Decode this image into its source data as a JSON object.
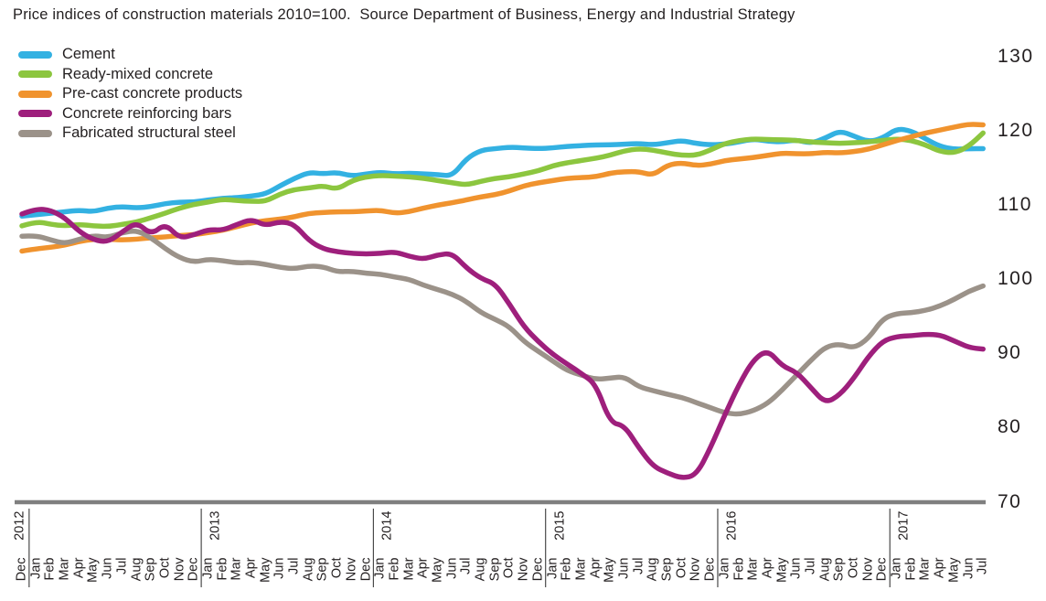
{
  "title": "Price indices of construction materials 2010=100.  Source Department of Business, Energy and Industrial Strategy",
  "colors": {
    "text": "#231F20",
    "axis_line": "#7F7F7F",
    "year_separator": "#4A4A4A",
    "background": "#FFFFFF"
  },
  "chart_data": {
    "type": "line",
    "title": "Price indices of construction materials 2010=100",
    "source": "Department of Business, Energy and Industrial Strategy",
    "ylim": [
      70,
      130
    ],
    "y_ticks": [
      "130",
      "120",
      "110",
      "100",
      "90",
      "80",
      "70"
    ],
    "legend_position": "top-left",
    "grid": false,
    "x_months": [
      "Dec",
      "Jan",
      "Feb",
      "Mar",
      "Apr",
      "May",
      "Jun",
      "Jul",
      "Aug",
      "Sep",
      "Oct",
      "Nov",
      "Dec",
      "Jan",
      "Feb",
      "Mar",
      "Apr",
      "May",
      "Jun",
      "Jul",
      "Aug",
      "Sep",
      "Oct",
      "Nov",
      "Dec",
      "Jan",
      "Feb",
      "Mar",
      "Apr",
      "May",
      "Jun",
      "Jul",
      "Aug",
      "Sep",
      "Oct",
      "Nov",
      "Dec",
      "Jan",
      "Feb",
      "Mar",
      "Apr",
      "May",
      "Jun",
      "Jul",
      "Aug",
      "Sep",
      "Oct",
      "Nov",
      "Dec",
      "Jan",
      "Feb",
      "Mar",
      "Apr",
      "May",
      "Jun",
      "Jul",
      "Aug",
      "Sep",
      "Oct",
      "Nov",
      "Dec",
      "Jan",
      "Feb",
      "Mar",
      "Apr",
      "May",
      "Jun",
      "Jul"
    ],
    "years": [
      {
        "label": "2012",
        "month_index": 0
      },
      {
        "label": "2013",
        "month_index": 13
      },
      {
        "label": "2014",
        "month_index": 25
      },
      {
        "label": "2015",
        "month_index": 37
      },
      {
        "label": "2016",
        "month_index": 49
      },
      {
        "label": "2017",
        "month_index": 61
      }
    ],
    "series": [
      {
        "name": "Cement",
        "color": "#33B1E2",
        "values": [
          108.4,
          108.6,
          108.8,
          109.0,
          109.2,
          109.0,
          109.5,
          109.7,
          109.5,
          109.7,
          110.1,
          110.3,
          110.3,
          110.6,
          110.8,
          110.9,
          111.1,
          111.4,
          112.5,
          113.5,
          114.3,
          114.1,
          114.3,
          113.8,
          114.1,
          114.3,
          114.1,
          114.2,
          114.1,
          114.0,
          113.8,
          116.2,
          117.3,
          117.5,
          117.7,
          117.6,
          117.5,
          117.6,
          117.8,
          117.9,
          118.0,
          118.0,
          118.1,
          118.2,
          118.0,
          118.3,
          118.6,
          118.2,
          118.0,
          118.1,
          118.4,
          118.8,
          118.5,
          118.4,
          118.7,
          118.2,
          118.9,
          119.9,
          119.2,
          118.4,
          118.9,
          120.2,
          119.9,
          118.8,
          117.8,
          117.4,
          117.5,
          117.5
        ]
      },
      {
        "name": "Ready-mixed concrete",
        "color": "#8CC63F",
        "values": [
          107.1,
          107.7,
          107.3,
          107.1,
          107.3,
          107.1,
          107.0,
          107.3,
          107.6,
          108.2,
          108.8,
          109.5,
          110.0,
          110.3,
          110.7,
          110.5,
          110.4,
          110.4,
          111.4,
          112.0,
          112.2,
          112.5,
          112.0,
          113.2,
          113.7,
          113.9,
          113.8,
          113.7,
          113.5,
          113.2,
          112.9,
          112.6,
          113.1,
          113.5,
          113.7,
          114.1,
          114.5,
          115.2,
          115.6,
          115.9,
          116.2,
          116.6,
          117.2,
          117.5,
          117.3,
          116.9,
          116.6,
          116.6,
          117.3,
          118.2,
          118.6,
          118.8,
          118.7,
          118.7,
          118.6,
          118.4,
          118.3,
          118.2,
          118.3,
          118.4,
          118.6,
          118.8,
          118.6,
          118.0,
          117.1,
          116.9,
          117.8,
          119.6
        ]
      },
      {
        "name": "Pre-cast concrete products",
        "color": "#F0932E",
        "values": [
          103.7,
          104.0,
          104.2,
          104.5,
          105.0,
          105.3,
          105.3,
          105.2,
          105.3,
          105.5,
          105.6,
          105.8,
          105.9,
          106.2,
          106.5,
          107.0,
          107.5,
          107.8,
          108.0,
          108.3,
          108.8,
          108.9,
          109.0,
          109.0,
          109.1,
          109.2,
          108.8,
          109.0,
          109.5,
          109.9,
          110.2,
          110.6,
          111.0,
          111.3,
          111.8,
          112.5,
          112.9,
          113.2,
          113.5,
          113.6,
          113.7,
          114.2,
          114.4,
          114.4,
          113.9,
          115.3,
          115.6,
          115.2,
          115.4,
          115.9,
          116.1,
          116.3,
          116.6,
          116.9,
          116.8,
          116.8,
          117.0,
          116.9,
          117.1,
          117.4,
          118.0,
          118.6,
          119.1,
          119.6,
          120.0,
          120.4,
          120.8,
          120.7
        ]
      },
      {
        "name": "Concrete reinforcing bars",
        "color": "#9E1F7C",
        "values": [
          108.7,
          109.4,
          109.2,
          108.2,
          106.3,
          105.2,
          104.9,
          106.3,
          107.6,
          105.9,
          107.4,
          105.4,
          105.9,
          106.6,
          106.5,
          107.3,
          108.0,
          107.1,
          107.7,
          107.3,
          105.1,
          104.0,
          103.6,
          103.4,
          103.3,
          103.4,
          103.6,
          103.0,
          102.6,
          103.2,
          103.4,
          101.4,
          100.0,
          99.3,
          96.5,
          93.5,
          91.5,
          89.8,
          88.5,
          87.2,
          85.8,
          80.6,
          80.2,
          77.2,
          74.7,
          73.8,
          73.1,
          73.5,
          77.2,
          81.7,
          85.8,
          89.1,
          90.4,
          88.2,
          87.4,
          85.3,
          83.2,
          84.3,
          86.6,
          89.5,
          91.6,
          92.2,
          92.3,
          92.5,
          92.4,
          91.6,
          90.7,
          90.5
        ]
      },
      {
        "name": "Fabricated structural steel",
        "color": "#9B9289",
        "values": [
          105.7,
          105.8,
          105.2,
          104.7,
          105.3,
          105.8,
          105.5,
          106.2,
          106.5,
          105.5,
          104.0,
          102.8,
          102.2,
          102.6,
          102.4,
          102.1,
          102.2,
          101.9,
          101.5,
          101.3,
          101.7,
          101.6,
          100.9,
          101.0,
          100.7,
          100.6,
          100.2,
          99.9,
          99.1,
          98.5,
          97.9,
          96.9,
          95.4,
          94.5,
          93.5,
          91.5,
          90.2,
          88.9,
          87.6,
          87.0,
          86.4,
          86.6,
          86.8,
          85.4,
          84.9,
          84.4,
          84.0,
          83.3,
          82.6,
          81.9,
          81.7,
          82.2,
          83.2,
          85.0,
          87.0,
          89.0,
          90.8,
          91.2,
          90.6,
          91.9,
          94.6,
          95.3,
          95.4,
          95.7,
          96.3,
          97.2,
          98.3,
          99.0
        ]
      }
    ]
  }
}
